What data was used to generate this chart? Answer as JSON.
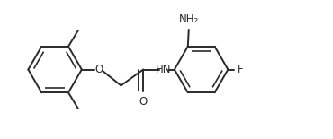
{
  "bg_color": "#ffffff",
  "line_color": "#2a2a2a",
  "line_width": 1.4,
  "font_size": 8.5,
  "figsize": [
    3.7,
    1.55
  ],
  "dpi": 100,
  "xlim": [
    0.0,
    7.4
  ],
  "ylim": [
    0.0,
    3.1
  ]
}
